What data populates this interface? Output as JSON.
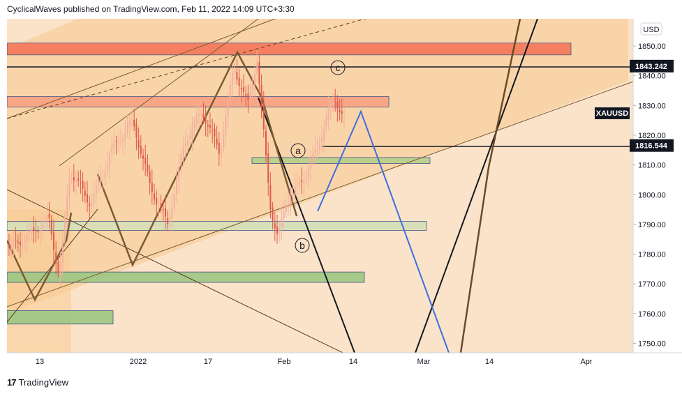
{
  "header": {
    "text": "CyclicalWaves published on TradingView.com, Feb 11, 2022 14:09 UTC+3:30"
  },
  "footer": {
    "logo_text": "17",
    "brand": "TradingView"
  },
  "chart_data": {
    "type": "candlestick",
    "symbol": "XAUUSD",
    "currency": "USD",
    "ylim": [
      1746,
      1855
    ],
    "y_ticks": [
      1750,
      1760,
      1770,
      1780,
      1790,
      1800,
      1810,
      1820,
      1830,
      1840,
      1850
    ],
    "x_ticks": [
      "13",
      "2022",
      "17",
      "Feb",
      "14",
      "Mar",
      "14",
      "Apr"
    ],
    "price_labels": [
      {
        "value": "1843.242",
        "price": 1843.242
      },
      {
        "value": "1816.544",
        "price": 1816.544
      }
    ],
    "wave_labels": [
      "c",
      "a",
      "b"
    ],
    "zones": [
      {
        "color": "#f4775a",
        "top": 1851,
        "bottom": 1847
      },
      {
        "color": "#f8a282",
        "top": 1833,
        "bottom": 1829.5
      },
      {
        "color": "#b7cf8a",
        "top": 1812.5,
        "bottom": 1810.5
      },
      {
        "color": "#d6e0b8",
        "top": 1791,
        "bottom": 1788
      },
      {
        "color": "#9ec783",
        "top": 1774,
        "bottom": 1770.5
      },
      {
        "color": "#9ec783",
        "top": 1761,
        "bottom": 1756.5
      }
    ],
    "colors": {
      "up": "#f4b0a0",
      "down": "#e0584a",
      "projection": "#3d6ee0",
      "wave": "#7b5a32",
      "background": "#fbe3c9"
    }
  }
}
